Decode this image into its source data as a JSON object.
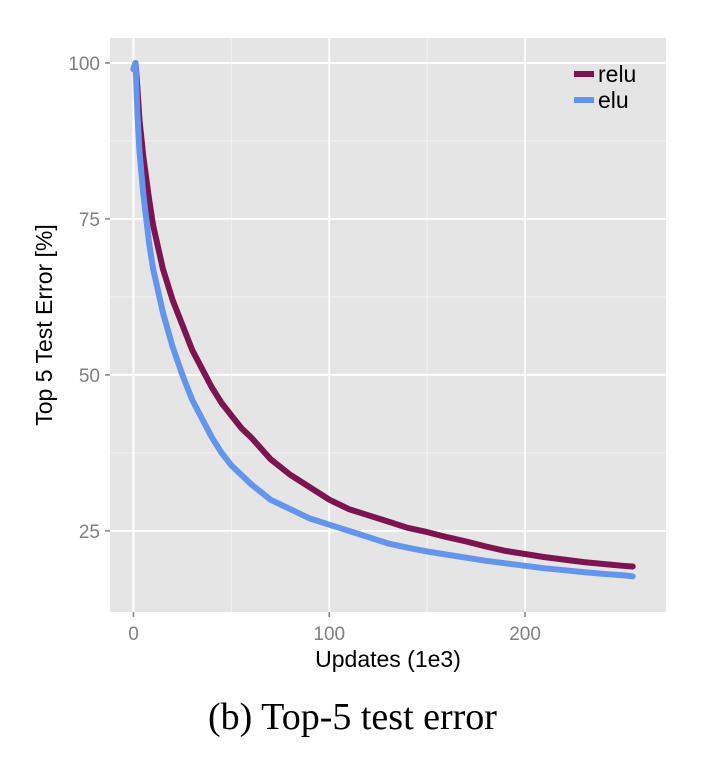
{
  "caption": "(b) Top-5 test error",
  "chart_data": {
    "type": "line",
    "title": "",
    "xlabel": "Updates (1e3)",
    "ylabel": "Top 5 Test Error [%]",
    "xlim": [
      -12,
      272
    ],
    "ylim": [
      12,
      104
    ],
    "xticks": [
      0,
      100,
      200
    ],
    "yticks": [
      25,
      50,
      75,
      100
    ],
    "grid": true,
    "background": "#e5e5e5",
    "legend": {
      "placement": "top-right",
      "entries": [
        "relu",
        "elu"
      ]
    },
    "series": [
      {
        "name": "relu",
        "color": "#7b1450",
        "x": [
          0,
          1,
          2,
          3,
          5,
          8,
          10,
          15,
          20,
          25,
          30,
          35,
          40,
          45,
          50,
          55,
          60,
          70,
          80,
          90,
          100,
          110,
          120,
          130,
          140,
          150,
          160,
          170,
          180,
          190,
          200,
          210,
          220,
          230,
          240,
          250,
          255
        ],
        "y": [
          99,
          100,
          96,
          91,
          85,
          78,
          74,
          67,
          62,
          58,
          54,
          51,
          48,
          45.5,
          43.5,
          41.5,
          40,
          36.5,
          34,
          32,
          30,
          28.5,
          27.5,
          26.5,
          25.5,
          24.8,
          24,
          23.3,
          22.5,
          21.8,
          21.3,
          20.8,
          20.4,
          20,
          19.7,
          19.4,
          19.3
        ]
      },
      {
        "name": "elu",
        "color": "#6495ed",
        "x": [
          0,
          1,
          2,
          3,
          5,
          8,
          10,
          15,
          20,
          25,
          30,
          35,
          40,
          45,
          50,
          55,
          60,
          70,
          80,
          90,
          100,
          110,
          120,
          130,
          140,
          150,
          160,
          170,
          180,
          190,
          200,
          210,
          220,
          230,
          240,
          250,
          255
        ],
        "y": [
          99,
          100,
          92,
          86,
          79,
          71,
          67,
          60,
          54.5,
          50,
          46,
          43,
          40,
          37.5,
          35.5,
          34,
          32.5,
          30,
          28.5,
          27,
          26,
          25,
          24,
          23,
          22.3,
          21.7,
          21.2,
          20.7,
          20.2,
          19.8,
          19.4,
          19,
          18.7,
          18.4,
          18.1,
          17.9,
          17.7
        ]
      }
    ]
  }
}
